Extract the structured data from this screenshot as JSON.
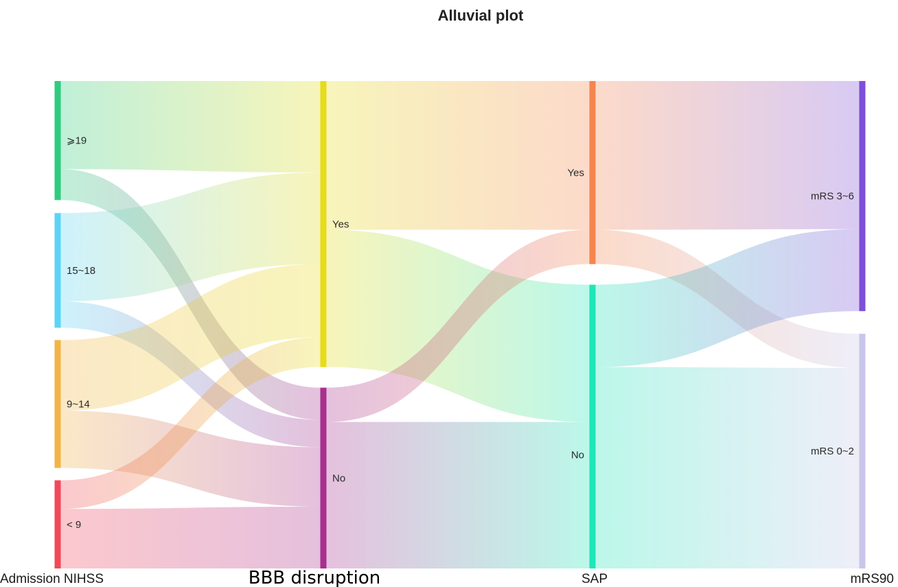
{
  "chart_data": {
    "type": "alluvial",
    "title": "Alluvial plot",
    "axes": [
      {
        "name": "Admission NIHSS",
        "nodes": [
          {
            "label": "⩾19",
            "value": 54,
            "color": "#2ecc7f"
          },
          {
            "label": "15~18",
            "value": 52,
            "color": "#5ad4f5"
          },
          {
            "label": "9~14",
            "value": 58,
            "color": "#f2b347"
          },
          {
            "label": "< 9",
            "value": 40,
            "color": "#f2495a"
          }
        ]
      },
      {
        "name": "BBB disruption",
        "nodes": [
          {
            "label": "Yes",
            "value": 125,
            "color": "#e6dc1c"
          },
          {
            "label": "No",
            "value": 79,
            "color": "#a8308f"
          }
        ]
      },
      {
        "name": "SAP",
        "nodes": [
          {
            "label": "Yes",
            "value": 80,
            "color": "#f4854f"
          },
          {
            "label": "No",
            "value": 124,
            "color": "#1fe6b8"
          }
        ]
      },
      {
        "name": "mRS90",
        "nodes": [
          {
            "label": "mRS 3~6",
            "value": 101,
            "color": "#7e4fd8"
          },
          {
            "label": "mRS 0~2",
            "value": 103,
            "color": "#c8c6ea"
          }
        ]
      }
    ],
    "flows": [
      {
        "from": [
          0,
          0
        ],
        "to": [
          1,
          0
        ],
        "value": 40
      },
      {
        "from": [
          0,
          0
        ],
        "to": [
          1,
          1
        ],
        "value": 14
      },
      {
        "from": [
          0,
          1
        ],
        "to": [
          1,
          0
        ],
        "value": 40
      },
      {
        "from": [
          0,
          1
        ],
        "to": [
          1,
          1
        ],
        "value": 12
      },
      {
        "from": [
          0,
          2
        ],
        "to": [
          1,
          0
        ],
        "value": 32
      },
      {
        "from": [
          0,
          2
        ],
        "to": [
          1,
          1
        ],
        "value": 26
      },
      {
        "from": [
          0,
          3
        ],
        "to": [
          1,
          0
        ],
        "value": 13
      },
      {
        "from": [
          0,
          3
        ],
        "to": [
          1,
          1
        ],
        "value": 27
      },
      {
        "from": [
          1,
          0
        ],
        "to": [
          2,
          0
        ],
        "value": 65
      },
      {
        "from": [
          1,
          0
        ],
        "to": [
          2,
          1
        ],
        "value": 60
      },
      {
        "from": [
          1,
          1
        ],
        "to": [
          2,
          0
        ],
        "value": 15
      },
      {
        "from": [
          1,
          1
        ],
        "to": [
          2,
          1
        ],
        "value": 64
      },
      {
        "from": [
          2,
          0
        ],
        "to": [
          3,
          0
        ],
        "value": 65
      },
      {
        "from": [
          2,
          0
        ],
        "to": [
          3,
          1
        ],
        "value": 15
      },
      {
        "from": [
          2,
          1
        ],
        "to": [
          3,
          0
        ],
        "value": 36
      },
      {
        "from": [
          2,
          1
        ],
        "to": [
          3,
          1
        ],
        "value": 88
      }
    ]
  }
}
